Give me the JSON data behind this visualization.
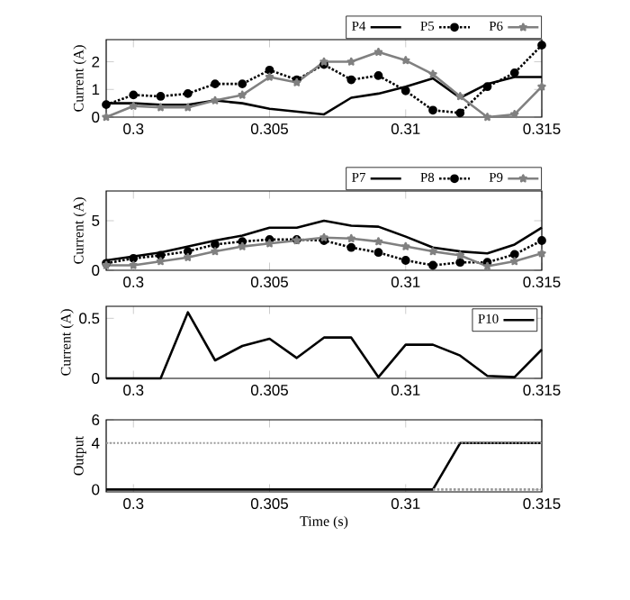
{
  "chart_data": [
    {
      "type": "line",
      "ylabel": "Current (A)",
      "x": [
        0.299,
        0.3,
        0.301,
        0.302,
        0.303,
        0.304,
        0.305,
        0.306,
        0.307,
        0.308,
        0.309,
        0.31,
        0.311,
        0.312,
        0.313,
        0.314,
        0.315
      ],
      "xlim": [
        0.299,
        0.315
      ],
      "xticks": [
        0.3,
        0.305,
        0.31,
        0.315
      ],
      "ylim": [
        0,
        2.8
      ],
      "yticks": [
        0,
        1,
        2
      ],
      "legend": "top",
      "series": [
        {
          "name": "P4",
          "color": "#000000",
          "line_style": "solid",
          "marker": "none",
          "values": [
            0.5,
            0.5,
            0.45,
            0.45,
            0.6,
            0.5,
            0.3,
            0.2,
            0.1,
            0.7,
            0.85,
            1.1,
            1.4,
            0.7,
            1.2,
            1.45,
            1.45
          ]
        },
        {
          "name": "P5",
          "color": "#000000",
          "line_style": "dotted",
          "marker": "circle",
          "values": [
            0.45,
            0.8,
            0.75,
            0.85,
            1.2,
            1.2,
            1.7,
            1.35,
            1.9,
            1.35,
            1.5,
            0.95,
            0.25,
            0.15,
            1.1,
            1.6,
            2.6
          ]
        },
        {
          "name": "P6",
          "color": "#808080",
          "line_style": "solid",
          "marker": "star",
          "values": [
            0,
            0.4,
            0.35,
            0.35,
            0.6,
            0.8,
            1.45,
            1.25,
            2.0,
            2.0,
            2.35,
            2.05,
            1.55,
            0.75,
            0,
            0.1,
            1.1
          ]
        }
      ]
    },
    {
      "type": "line",
      "ylabel": "Current (A)",
      "x": [
        0.299,
        0.3,
        0.301,
        0.302,
        0.303,
        0.304,
        0.305,
        0.306,
        0.307,
        0.308,
        0.309,
        0.31,
        0.311,
        0.312,
        0.313,
        0.314,
        0.315
      ],
      "xlim": [
        0.299,
        0.315
      ],
      "xticks": [
        0.3,
        0.305,
        0.31,
        0.315
      ],
      "ylim": [
        0,
        8
      ],
      "yticks": [
        0,
        5
      ],
      "legend": "top",
      "series": [
        {
          "name": "P7",
          "color": "#000000",
          "line_style": "solid",
          "marker": "none",
          "values": [
            1.0,
            1.4,
            1.8,
            2.4,
            3.0,
            3.5,
            4.3,
            4.3,
            5.0,
            4.5,
            4.4,
            3.4,
            2.3,
            1.9,
            1.7,
            2.6,
            4.3
          ]
        },
        {
          "name": "P8",
          "color": "#000000",
          "line_style": "dotted",
          "marker": "circle",
          "values": [
            0.7,
            1.2,
            1.5,
            1.9,
            2.6,
            2.9,
            3.1,
            3.1,
            3.0,
            2.3,
            1.8,
            1.0,
            0.5,
            0.8,
            0.8,
            1.6,
            3.0
          ]
        },
        {
          "name": "P9",
          "color": "#808080",
          "line_style": "solid",
          "marker": "star",
          "values": [
            0.5,
            0.5,
            0.9,
            1.3,
            1.9,
            2.4,
            2.7,
            3.0,
            3.3,
            3.2,
            2.9,
            2.4,
            1.9,
            1.5,
            0.4,
            0.9,
            1.7
          ]
        }
      ]
    },
    {
      "type": "line",
      "ylabel": "Current (A)",
      "x": [
        0.299,
        0.3,
        0.301,
        0.302,
        0.303,
        0.304,
        0.305,
        0.306,
        0.307,
        0.308,
        0.309,
        0.31,
        0.311,
        0.312,
        0.313,
        0.314,
        0.315
      ],
      "xlim": [
        0.299,
        0.315
      ],
      "xticks": [
        0.3,
        0.305,
        0.31,
        0.315
      ],
      "ylim": [
        0,
        0.6
      ],
      "yticks": [
        0,
        0.5
      ],
      "legend": "top right",
      "series": [
        {
          "name": "P10",
          "color": "#000000",
          "line_style": "solid",
          "marker": "none",
          "values": [
            0,
            0,
            0,
            0.55,
            0.15,
            0.27,
            0.33,
            0.17,
            0.34,
            0.34,
            0.01,
            0.28,
            0.28,
            0.19,
            0.02,
            0.01,
            0.24
          ]
        }
      ]
    },
    {
      "type": "line",
      "ylabel": "Output",
      "xlabel": "Time (s)",
      "x": [
        0.299,
        0.3,
        0.301,
        0.302,
        0.303,
        0.304,
        0.305,
        0.306,
        0.307,
        0.308,
        0.309,
        0.31,
        0.311,
        0.312,
        0.313,
        0.314,
        0.315
      ],
      "xlim": [
        0.299,
        0.315
      ],
      "xticks": [
        0.3,
        0.305,
        0.31,
        0.315
      ],
      "ylim": [
        -0.2,
        6
      ],
      "yticks": [
        0,
        4,
        6
      ],
      "ref_lines": [
        {
          "axis": "y",
          "value": 4,
          "color": "#999999",
          "line_style": "dotted"
        }
      ],
      "series": [
        {
          "color": "#000000",
          "line_style": "solid",
          "marker": "none",
          "values": [
            0,
            0,
            0,
            0,
            0,
            0,
            0,
            0,
            0,
            0,
            0,
            0,
            0,
            4,
            4,
            4,
            4
          ]
        },
        {
          "color": "#999999",
          "line_style": "dotted",
          "marker": "none",
          "x": [
            0.311,
            0.315
          ],
          "values": [
            0,
            0
          ]
        }
      ]
    }
  ]
}
